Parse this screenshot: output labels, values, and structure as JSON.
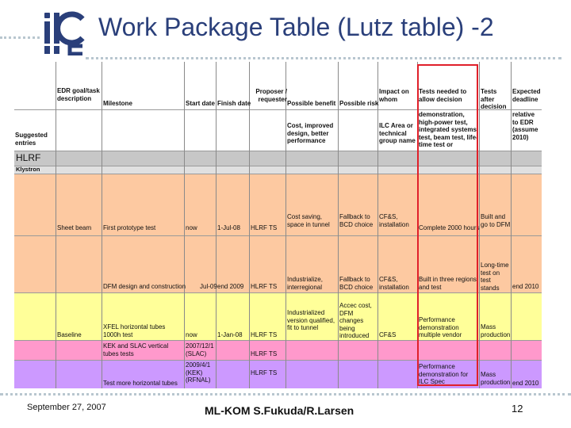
{
  "slide": {
    "title": "Work Package Table (Lutz table) -2",
    "logo_text": "ilc",
    "footer": {
      "date": "September 27, 2007",
      "center": "ML-KOM S.Fukuda/R.Larsen",
      "page": "12"
    }
  },
  "table": {
    "headers": {
      "edr_goal": "EDR goal/task description",
      "milestone": "Milestone",
      "start": "Start date",
      "finish": "Finish date",
      "proposer": "Proposer / requester",
      "benefit": "Possible benefit",
      "risk": "Possible risk",
      "impact": "Impact on whom",
      "tests_needed": "Tests needed to allow decision",
      "tests_after": "Tests after decision",
      "deadline": "Expected deadline"
    },
    "suggested": {
      "label": "Suggested entries",
      "benefit": "Cost, improved design, better performance",
      "impact": "ILC Area or technical group name",
      "tests_needed": "demonstration, high-power test, integrated systems test, beam test, life-time test or",
      "deadline": "relative to EDR (assume 2010)"
    },
    "section": "HLRF",
    "subsection": "Klystron",
    "rows": [
      {
        "goal": "Sheet beam",
        "milestone": "First prototype test",
        "start": "now",
        "finish": "1-Jul-08",
        "proposer": "HLRF TS",
        "benefit": "Cost saving, space in tunnel",
        "risk": "Fallback to BCD choice",
        "impact": "CF&S, installation",
        "tests_needed": "Complete 2000 hours",
        "tests_after": "Built and go to DFM",
        "deadline": ""
      },
      {
        "goal": "",
        "milestone": "DFM design and construction",
        "start": "Jul-09",
        "finish": "end 2009",
        "proposer": "HLRF TS",
        "benefit": "Industrialize, interregional",
        "risk": "Fallback to BCD choice",
        "impact": "CF&S, installation",
        "tests_needed": "Built in three regions and test",
        "tests_after": "Long-time test on test stands",
        "deadline": "end 2010"
      },
      {
        "goal": "Baseline",
        "milestone": "XFEL horizontal tubes 1000h test",
        "start": "now",
        "finish": "1-Jan-08",
        "proposer": "HLRF TS",
        "benefit": "Industrialized version qualified, fit to tunnel",
        "risk": "Accec cost, DFM changes being introduced",
        "impact": "CF&S",
        "tests_needed": "Performance demonstration multiple vendor",
        "tests_after": "Mass production",
        "deadline": ""
      },
      {
        "goal": "",
        "milestone": "KEK and SLAC vertical tubes tests",
        "start": "2007/12/1 (SLAC)",
        "finish": "",
        "proposer": "HLRF TS",
        "benefit": "",
        "risk": "",
        "impact": "",
        "tests_needed": "",
        "tests_after": "",
        "deadline": ""
      },
      {
        "goal": "",
        "milestone": "Test more horizontal tubes",
        "start": "2009/4/1 (KEK) (RFNAL)",
        "finish": "",
        "proposer": "HLRF TS",
        "benefit": "",
        "risk": "",
        "impact": "",
        "tests_needed": "Performance demonstration for ILC Spec",
        "tests_after": "Mass production",
        "deadline": "end 2010"
      }
    ]
  },
  "colors": {
    "title": "#2a3f7a",
    "orange_rows": "#fdc9a1",
    "yellow_row": "#ffff99",
    "pink_row": "#ff99cc",
    "purple_row": "#cc99ff",
    "section_gray": "#c7c7c7",
    "highlight_box": "#e0202a"
  }
}
